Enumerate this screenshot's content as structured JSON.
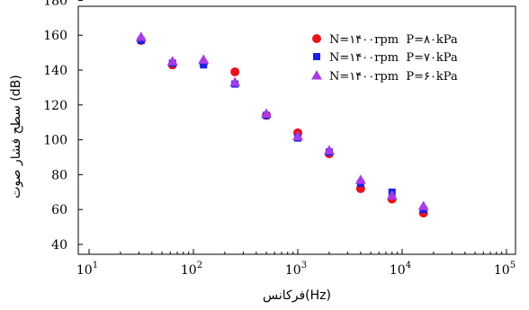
{
  "chart_data": {
    "type": "scatter",
    "xlabel": "فرکانس(Hz)",
    "ylabel": "سطح فشار صوت (dB)",
    "xscale": "log",
    "xlim": [
      10,
      100000
    ],
    "ylim": [
      40,
      180
    ],
    "xticks": [
      {
        "value": 10,
        "base": "10",
        "exp": "1"
      },
      {
        "value": 100,
        "base": "10",
        "exp": "2"
      },
      {
        "value": 1000,
        "base": "10",
        "exp": "3"
      },
      {
        "value": 10000,
        "base": "10",
        "exp": "4"
      },
      {
        "value": 100000,
        "base": "10",
        "exp": "5"
      }
    ],
    "yticks": [
      "40",
      "60",
      "80",
      "100",
      "120",
      "140",
      "160",
      "180"
    ],
    "grid": false,
    "legend_position": "top-right",
    "series": [
      {
        "name": "N=۱۴۰۰rpm  P=۸۰kPa",
        "marker": "circle",
        "color": "#e8141c",
        "points": [
          {
            "x": 31.5,
            "y": 157
          },
          {
            "x": 63,
            "y": 143
          },
          {
            "x": 125,
            "y": 144
          },
          {
            "x": 250,
            "y": 139
          },
          {
            "x": 500,
            "y": 114
          },
          {
            "x": 1000,
            "y": 104
          },
          {
            "x": 2000,
            "y": 92
          },
          {
            "x": 4000,
            "y": 72
          },
          {
            "x": 8000,
            "y": 66
          },
          {
            "x": 16000,
            "y": 58
          }
        ]
      },
      {
        "name": "N=۱۴۰۰rpm  P=۷۰kPa",
        "marker": "square",
        "color": "#1a22e6",
        "points": [
          {
            "x": 31.5,
            "y": 157
          },
          {
            "x": 63,
            "y": 144
          },
          {
            "x": 125,
            "y": 143
          },
          {
            "x": 250,
            "y": 132
          },
          {
            "x": 500,
            "y": 114
          },
          {
            "x": 1000,
            "y": 101
          },
          {
            "x": 2000,
            "y": 93
          },
          {
            "x": 4000,
            "y": 75
          },
          {
            "x": 8000,
            "y": 70
          },
          {
            "x": 16000,
            "y": 60
          }
        ]
      },
      {
        "name": "N=۱۴۰۰rpm  P=۶۰kPa",
        "marker": "triangle",
        "color": "#a63de8",
        "points": [
          {
            "x": 31.5,
            "y": 159
          },
          {
            "x": 63,
            "y": 145
          },
          {
            "x": 125,
            "y": 146
          },
          {
            "x": 250,
            "y": 133
          },
          {
            "x": 500,
            "y": 115
          },
          {
            "x": 1000,
            "y": 102
          },
          {
            "x": 2000,
            "y": 94
          },
          {
            "x": 4000,
            "y": 77
          },
          {
            "x": 8000,
            "y": 68
          },
          {
            "x": 16000,
            "y": 62
          }
        ]
      }
    ]
  }
}
